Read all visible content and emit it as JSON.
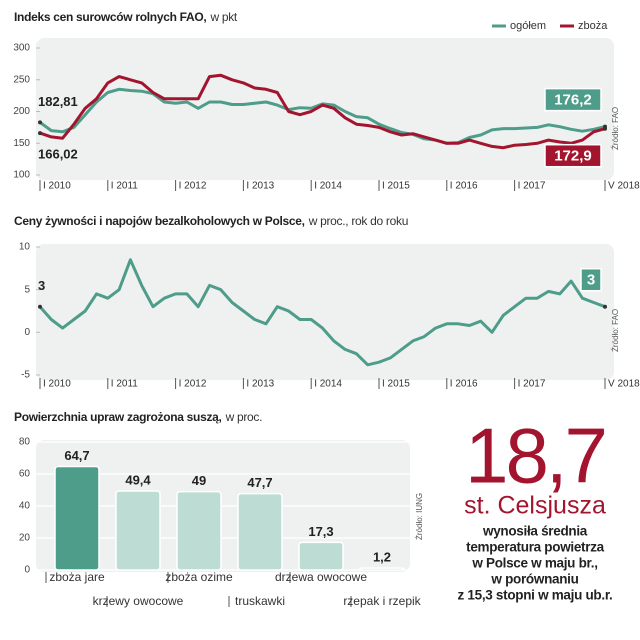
{
  "chart_data": [
    {
      "type": "line",
      "title": "Indeks cen surowców rolnych FAO,",
      "subtitle": "w pkt",
      "source": "Źródło: FAO",
      "legend": "top-right",
      "grid": false,
      "categories": [
        "I 2010",
        null,
        null,
        null,
        null,
        null,
        "I 2011",
        null,
        null,
        null,
        null,
        null,
        "I 2012",
        null,
        null,
        null,
        null,
        null,
        "I 2013",
        null,
        null,
        null,
        null,
        null,
        "I 2014",
        null,
        null,
        null,
        null,
        null,
        "I 2015",
        null,
        null,
        null,
        null,
        null,
        "I 2016",
        null,
        null,
        null,
        null,
        null,
        "I 2017",
        null,
        null,
        null,
        null,
        null,
        null,
        null,
        "V 2018"
      ],
      "ylim": [
        100,
        300
      ],
      "yticks": [
        100,
        150,
        200,
        250,
        300
      ],
      "series": [
        {
          "name": "ogółem",
          "color": "#4e9c8a",
          "values": [
            182.81,
            170,
            168,
            175,
            195,
            215,
            230,
            235,
            233,
            232,
            228,
            215,
            213,
            215,
            205,
            215,
            215,
            211,
            211,
            213,
            215,
            210,
            203,
            206,
            205,
            212,
            210,
            200,
            192,
            190,
            180,
            173,
            167,
            164,
            157,
            155,
            150,
            151,
            159,
            163,
            171,
            173,
            173,
            174,
            175,
            179,
            176,
            172,
            169,
            172,
            176.2
          ],
          "value_labels": [
            "182,81",
            null,
            null,
            null,
            null,
            null,
            null,
            null,
            null,
            null,
            null,
            null,
            null,
            null,
            null,
            null,
            null,
            null,
            null,
            null,
            null,
            null,
            null,
            null,
            null,
            null,
            null,
            null,
            null,
            null,
            null,
            null,
            null,
            null,
            null,
            null,
            null,
            null,
            null,
            null,
            null,
            null,
            null,
            null,
            null,
            null,
            null,
            null,
            null,
            null,
            "176,2"
          ]
        },
        {
          "name": "zboża",
          "color": "#a3152e",
          "values": [
            166.02,
            160,
            158,
            180,
            205,
            220,
            245,
            255,
            250,
            245,
            230,
            220,
            220,
            220,
            220,
            255,
            257,
            250,
            245,
            237,
            235,
            230,
            200,
            195,
            200,
            210,
            205,
            190,
            180,
            178,
            175,
            168,
            163,
            165,
            160,
            155,
            150,
            150,
            155,
            150,
            145,
            143,
            147,
            148,
            150,
            155,
            152,
            150,
            155,
            168,
            172.9
          ],
          "value_labels": [
            "166,02",
            null,
            null,
            null,
            null,
            null,
            null,
            null,
            null,
            null,
            null,
            null,
            null,
            null,
            null,
            null,
            null,
            null,
            null,
            null,
            null,
            null,
            null,
            null,
            null,
            null,
            null,
            null,
            null,
            null,
            null,
            null,
            null,
            null,
            null,
            null,
            null,
            null,
            null,
            null,
            null,
            null,
            null,
            null,
            null,
            null,
            null,
            null,
            null,
            null,
            "172,9"
          ]
        }
      ]
    },
    {
      "type": "line",
      "title": "Ceny żywności i napojów bezalkoholowych w Polsce,",
      "subtitle": "w proc., rok do roku",
      "source": "Źródło: FAO",
      "grid": false,
      "categories": [
        "I 2010",
        null,
        null,
        null,
        null,
        null,
        "I 2011",
        null,
        null,
        null,
        null,
        null,
        "I 2012",
        null,
        null,
        null,
        null,
        null,
        "I 2013",
        null,
        null,
        null,
        null,
        null,
        "I 2014",
        null,
        null,
        null,
        null,
        null,
        "I 2015",
        null,
        null,
        null,
        null,
        null,
        "I 2016",
        null,
        null,
        null,
        null,
        null,
        "I 2017",
        null,
        null,
        null,
        null,
        null,
        null,
        null,
        "V 2018"
      ],
      "ylim": [
        -5,
        10
      ],
      "yticks": [
        -5,
        0,
        5,
        10
      ],
      "series": [
        {
          "name": "ceny",
          "color": "#4e9c8a",
          "values": [
            3,
            1.5,
            0.5,
            1.5,
            2.5,
            4.5,
            4,
            5,
            8.5,
            5.5,
            3,
            4,
            4.5,
            4.5,
            3,
            5.5,
            5,
            3.5,
            2.5,
            1.5,
            1,
            3,
            2.5,
            1.5,
            1.5,
            0.5,
            -1,
            -2,
            -2.5,
            -3.8,
            -3.5,
            -3,
            -2,
            -1,
            -0.5,
            0.5,
            1,
            1,
            0.8,
            1.3,
            0,
            2,
            3,
            4,
            4,
            4.8,
            4.5,
            6,
            4,
            3.5,
            3
          ],
          "labeled": [
            0,
            50
          ]
        }
      ]
    },
    {
      "type": "bar",
      "title": "Powierzchnia upraw zagrożona suszą,",
      "subtitle": "w proc.",
      "source": "Źródło: IUNG",
      "grid": true,
      "categories": [
        "zboża jare",
        "krzewy owocowe",
        "zboża ozime",
        "truskawki",
        "drzewa owocowe",
        "rzepak i rzepik"
      ],
      "values": [
        64.7,
        49.4,
        49,
        47.7,
        17.3,
        1.2
      ],
      "value_labels": [
        "64,7",
        "49,4",
        "49",
        "47,7",
        "17,3",
        "1,2"
      ],
      "colors": [
        "#4e9c8a",
        "#bcdcd4",
        "#bcdcd4",
        "#bcdcd4",
        "#bcdcd4",
        "#bcdcd4"
      ],
      "ylim": [
        0,
        80
      ],
      "yticks": [
        0,
        20,
        40,
        60,
        80
      ]
    }
  ],
  "callout": {
    "value": "18,7",
    "unit": "st. Celsjusza",
    "lines": [
      "wynosiła średnia",
      "temperatura powietrza",
      "w Polsce w maju br.,",
      "w porównaniu",
      "z 15,3 stopni w maju ub.r."
    ]
  }
}
